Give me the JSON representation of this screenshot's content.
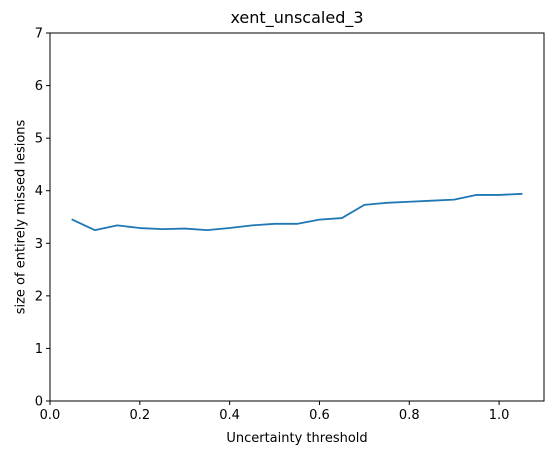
{
  "chart_data": {
    "type": "line",
    "title": "xent_unscaled_3",
    "xlabel": "Uncertainty threshold",
    "ylabel": "size of entirely missed lesions",
    "xlim": [
      0.0,
      1.1
    ],
    "ylim": [
      0,
      7
    ],
    "xticks": [
      0.0,
      0.2,
      0.4,
      0.6,
      0.8,
      1.0
    ],
    "xtick_labels": [
      "0.0",
      "0.2",
      "0.4",
      "0.6",
      "0.8",
      "1.0"
    ],
    "yticks": [
      0,
      1,
      2,
      3,
      4,
      5,
      6,
      7
    ],
    "ytick_labels": [
      "0",
      "1",
      "2",
      "3",
      "4",
      "5",
      "6",
      "7"
    ],
    "grid": false,
    "series": [
      {
        "color": "#1f77b4",
        "x": [
          0.05,
          0.1,
          0.15,
          0.2,
          0.25,
          0.3,
          0.35,
          0.4,
          0.45,
          0.5,
          0.55,
          0.6,
          0.65,
          0.7,
          0.75,
          0.8,
          0.85,
          0.9,
          0.95,
          1.0,
          1.05
        ],
        "y": [
          3.45,
          3.25,
          3.34,
          3.29,
          3.27,
          3.28,
          3.25,
          3.29,
          3.34,
          3.37,
          3.37,
          3.45,
          3.48,
          3.73,
          3.77,
          3.79,
          3.81,
          3.83,
          3.92,
          3.92,
          3.94
        ]
      }
    ]
  }
}
